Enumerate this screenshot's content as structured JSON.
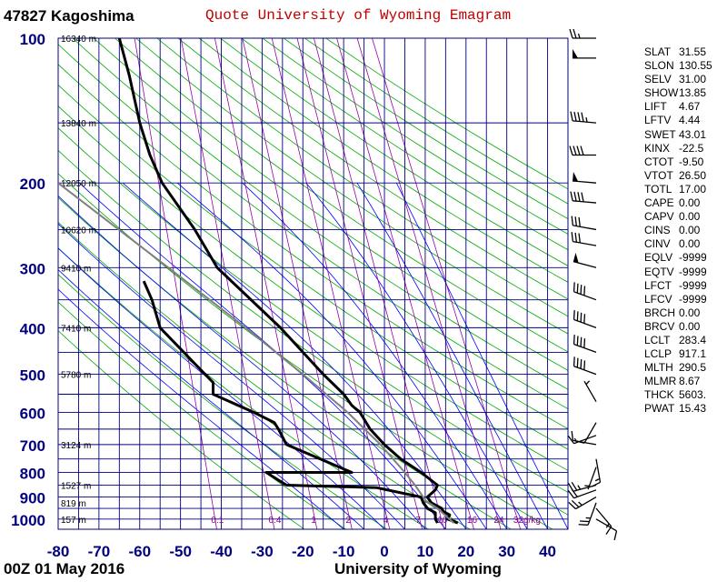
{
  "header": {
    "station": "47827  Kagoshima",
    "title": "Quote University of Wyoming Emagram",
    "datetime": "00Z 01 May 2016",
    "source": "University of Wyoming"
  },
  "indices": [
    {
      "name": "SLAT",
      "value": "31.55"
    },
    {
      "name": "SLON",
      "value": "130.55"
    },
    {
      "name": "SELV",
      "value": "31.00"
    },
    {
      "name": "SHOW",
      "value": "13.85"
    },
    {
      "name": "LIFT",
      "value": "4.67"
    },
    {
      "name": "LFTV",
      "value": "4.44"
    },
    {
      "name": "SWET",
      "value": "43.01"
    },
    {
      "name": "KINX",
      "value": "-22.5"
    },
    {
      "name": "CTOT",
      "value": "-9.50"
    },
    {
      "name": "VTOT",
      "value": "26.50"
    },
    {
      "name": "TOTL",
      "value": "17.00"
    },
    {
      "name": "CAPE",
      "value": "0.00"
    },
    {
      "name": "CAPV",
      "value": "0.00"
    },
    {
      "name": "CINS",
      "value": "0.00"
    },
    {
      "name": "CINV",
      "value": "0.00"
    },
    {
      "name": "EQLV",
      "value": "-9999"
    },
    {
      "name": "EQTV",
      "value": "-9999"
    },
    {
      "name": "LFCT",
      "value": "-9999"
    },
    {
      "name": "LFCV",
      "value": "-9999"
    },
    {
      "name": "BRCH",
      "value": "0.00"
    },
    {
      "name": "BRCV",
      "value": "0.00"
    },
    {
      "name": "LCLT",
      "value": "283.4"
    },
    {
      "name": "LCLP",
      "value": "917.1"
    },
    {
      "name": "MLTH",
      "value": "290.5"
    },
    {
      "name": "MLMR",
      "value": "8.67"
    },
    {
      "name": "THCK",
      "value": "5603."
    },
    {
      "name": "PWAT",
      "value": "15.43"
    }
  ],
  "chart_data": {
    "type": "line",
    "title": "Quote University of Wyoming Emagram",
    "xlim": [
      -80,
      45
    ],
    "ylim": [
      1050,
      100
    ],
    "y_scale": "log",
    "x_ticks": [
      -80,
      -70,
      -60,
      -50,
      -40,
      -30,
      -20,
      -10,
      0,
      10,
      20,
      30,
      40
    ],
    "y_ticks": [
      100,
      200,
      300,
      400,
      500,
      600,
      700,
      800,
      900,
      1000
    ],
    "grid": true,
    "height_labels": [
      {
        "p": 100,
        "text": "16340 m"
      },
      {
        "p": 150,
        "text": "13840 m"
      },
      {
        "p": 200,
        "text": "12050 m"
      },
      {
        "p": 250,
        "text": "10620 m"
      },
      {
        "p": 300,
        "text": "9410 m"
      },
      {
        "p": 400,
        "text": "7410 m"
      },
      {
        "p": 500,
        "text": "5780 m"
      },
      {
        "p": 700,
        "text": "3124 m"
      },
      {
        "p": 850,
        "text": "1527 m"
      },
      {
        "p": 925,
        "text": "819 m"
      },
      {
        "p": 1000,
        "text": "157 m"
      }
    ],
    "mixing_ratio_labels": [
      "0.1",
      "0.4",
      "1",
      "2",
      "4",
      "7",
      "10",
      "16",
      "24",
      "32g/kg"
    ],
    "mixing_ratio_values": [
      0.1,
      0.4,
      1,
      2,
      4,
      7,
      10,
      16,
      24,
      32
    ],
    "series": [
      {
        "name": "Temperature",
        "color": "#000000",
        "points": [
          {
            "p": 1019,
            "t": 18
          },
          {
            "p": 1000,
            "t": 15.5
          },
          {
            "p": 980,
            "t": 16
          },
          {
            "p": 965,
            "t": 14.5
          },
          {
            "p": 950,
            "t": 14
          },
          {
            "p": 925,
            "t": 11.5
          },
          {
            "p": 900,
            "t": 10.5
          },
          {
            "p": 870,
            "t": 12.5
          },
          {
            "p": 850,
            "t": 13
          },
          {
            "p": 800,
            "t": 9
          },
          {
            "p": 750,
            "t": 4
          },
          {
            "p": 700,
            "t": 0
          },
          {
            "p": 650,
            "t": -3.5
          },
          {
            "p": 600,
            "t": -6
          },
          {
            "p": 580,
            "t": -8
          },
          {
            "p": 550,
            "t": -10
          },
          {
            "p": 500,
            "t": -15
          },
          {
            "p": 400,
            "t": -25.5
          },
          {
            "p": 300,
            "t": -41
          },
          {
            "p": 250,
            "t": -46.5
          },
          {
            "p": 200,
            "t": -54.5
          },
          {
            "p": 175,
            "t": -57.5
          },
          {
            "p": 150,
            "t": -60
          },
          {
            "p": 120,
            "t": -62.5
          },
          {
            "p": 100,
            "t": -65
          }
        ]
      },
      {
        "name": "Dew point",
        "color": "#000000",
        "points": [
          {
            "p": 1019,
            "t": 13
          },
          {
            "p": 1000,
            "t": 12.5
          },
          {
            "p": 970,
            "t": 12.5
          },
          {
            "p": 950,
            "t": 10.5
          },
          {
            "p": 925,
            "t": 9.5
          },
          {
            "p": 900,
            "t": 9
          },
          {
            "p": 860,
            "t": -2
          },
          {
            "p": 850,
            "t": -24
          },
          {
            "p": 800,
            "t": -29
          },
          {
            "p": 800,
            "t": -8
          },
          {
            "p": 700,
            "t": -24
          },
          {
            "p": 650,
            "t": -26
          },
          {
            "p": 630,
            "t": -27
          },
          {
            "p": 600,
            "t": -32
          },
          {
            "p": 550,
            "t": -42
          },
          {
            "p": 520,
            "t": -42
          },
          {
            "p": 500,
            "t": -44
          },
          {
            "p": 400,
            "t": -55
          },
          {
            "p": 350,
            "t": -57
          },
          {
            "p": 320,
            "t": -59
          }
        ]
      },
      {
        "name": "Parcel path",
        "color": "#808080",
        "points": [
          {
            "p": 1019,
            "t": 17
          },
          {
            "p": 950,
            "t": 13
          },
          {
            "p": 917,
            "t": 10.2
          },
          {
            "p": 850,
            "t": 7.5
          },
          {
            "p": 800,
            "t": 5
          },
          {
            "p": 700,
            "t": -1
          },
          {
            "p": 600,
            "t": -9
          },
          {
            "p": 500,
            "t": -20
          },
          {
            "p": 400,
            "t": -34
          },
          {
            "p": 300,
            "t": -53
          },
          {
            "p": 200,
            "t": -80
          }
        ]
      }
    ],
    "wind_barbs": [
      {
        "p": 1000,
        "dir": 120,
        "spd": 10
      },
      {
        "p": 950,
        "dir": 140,
        "spd": 15
      },
      {
        "p": 925,
        "dir": 200,
        "spd": 25
      },
      {
        "p": 900,
        "dir": 240,
        "spd": 25
      },
      {
        "p": 870,
        "dir": 250,
        "spd": 20
      },
      {
        "p": 850,
        "dir": 255,
        "spd": 25
      },
      {
        "p": 780,
        "dir": 200,
        "spd": 5
      },
      {
        "p": 750,
        "dir": 170,
        "spd": 15
      },
      {
        "p": 700,
        "dir": 280,
        "spd": 10
      },
      {
        "p": 670,
        "dir": 250,
        "spd": 15
      },
      {
        "p": 630,
        "dir": 210,
        "spd": 10
      },
      {
        "p": 570,
        "dir": 330,
        "spd": 5
      },
      {
        "p": 500,
        "dir": 290,
        "spd": 40
      },
      {
        "p": 450,
        "dir": 290,
        "spd": 40
      },
      {
        "p": 400,
        "dir": 290,
        "spd": 40
      },
      {
        "p": 350,
        "dir": 290,
        "spd": 40
      },
      {
        "p": 300,
        "dir": 285,
        "spd": 50
      },
      {
        "p": 270,
        "dir": 280,
        "spd": 30
      },
      {
        "p": 250,
        "dir": 280,
        "spd": 30
      },
      {
        "p": 220,
        "dir": 275,
        "spd": 40
      },
      {
        "p": 200,
        "dir": 275,
        "spd": 50
      },
      {
        "p": 175,
        "dir": 270,
        "spd": 40
      },
      {
        "p": 150,
        "dir": 275,
        "spd": 45
      },
      {
        "p": 110,
        "dir": 270,
        "spd": 50
      },
      {
        "p": 100,
        "dir": 270,
        "spd": 25
      }
    ],
    "colors": {
      "grid": "#00007f",
      "dry_adiabat": "#00aa00",
      "moist_adiabat": "#0000ff",
      "mixing_ratio": "#9900aa",
      "mixing_label": "#8b0086",
      "axis_label": "#00007f"
    }
  }
}
